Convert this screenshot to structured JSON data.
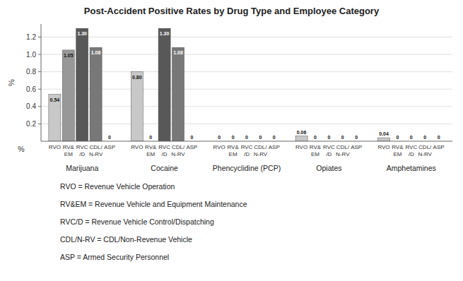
{
  "chart_data": {
    "type": "bar",
    "title": "Post-Accident Positive Rates by Drug Type and Employee Category",
    "ylabel": "%",
    "xlabel": "%",
    "categories": [
      "Marijuana",
      "Cocaine",
      "Phencyclidine (PCP)",
      "Opiates",
      "Amphetamines"
    ],
    "series": [
      {
        "name": "RVO",
        "color": "#c8c8c8",
        "values": [
          0.54,
          0.8,
          0,
          0.06,
          0.04
        ],
        "value_labels": [
          "0.54",
          "0.80",
          "0",
          "0.06",
          "0.04"
        ]
      },
      {
        "name": "RV&\nEM",
        "color": "#989898",
        "values": [
          1.05,
          0,
          0,
          0,
          0
        ],
        "value_labels": [
          "1.05",
          "0",
          "0",
          "0",
          "0"
        ]
      },
      {
        "name": "RVC\n/D",
        "color": "#585858",
        "values": [
          1.3,
          1.3,
          0,
          0,
          0
        ],
        "value_labels": [
          "1.30",
          "1.30",
          "0",
          "0",
          "0"
        ]
      },
      {
        "name": "CDL/\nN-RV",
        "color": "#787878",
        "values": [
          1.08,
          1.08,
          0,
          0,
          0
        ],
        "value_labels": [
          "1.08",
          "1.08",
          "0",
          "0",
          "0"
        ]
      },
      {
        "name": "ASP",
        "color": "#d8d8d8",
        "values": [
          0,
          0,
          0,
          0,
          0
        ],
        "value_labels": [
          "0",
          "0",
          "0",
          "0",
          "0"
        ]
      }
    ],
    "ylim": [
      0,
      1.35
    ],
    "yticks": [
      0.2,
      0.4,
      0.6,
      0.8,
      {
        "value": 1.0,
        "label": "1.0"
      },
      1.2
    ],
    "grid": true,
    "data_labels": true,
    "annotations": [
      "RVO = Revenue Vehicle Operation",
      "RV&EM = Revenue Vehicle and Equipment Maintenance",
      "RVC/D = Revenue Vehicle Control/Dispatching",
      "CDL/N-RV = CDL/Non-Revenue Vehicle",
      "ASP = Armed Security Personnel"
    ]
  }
}
